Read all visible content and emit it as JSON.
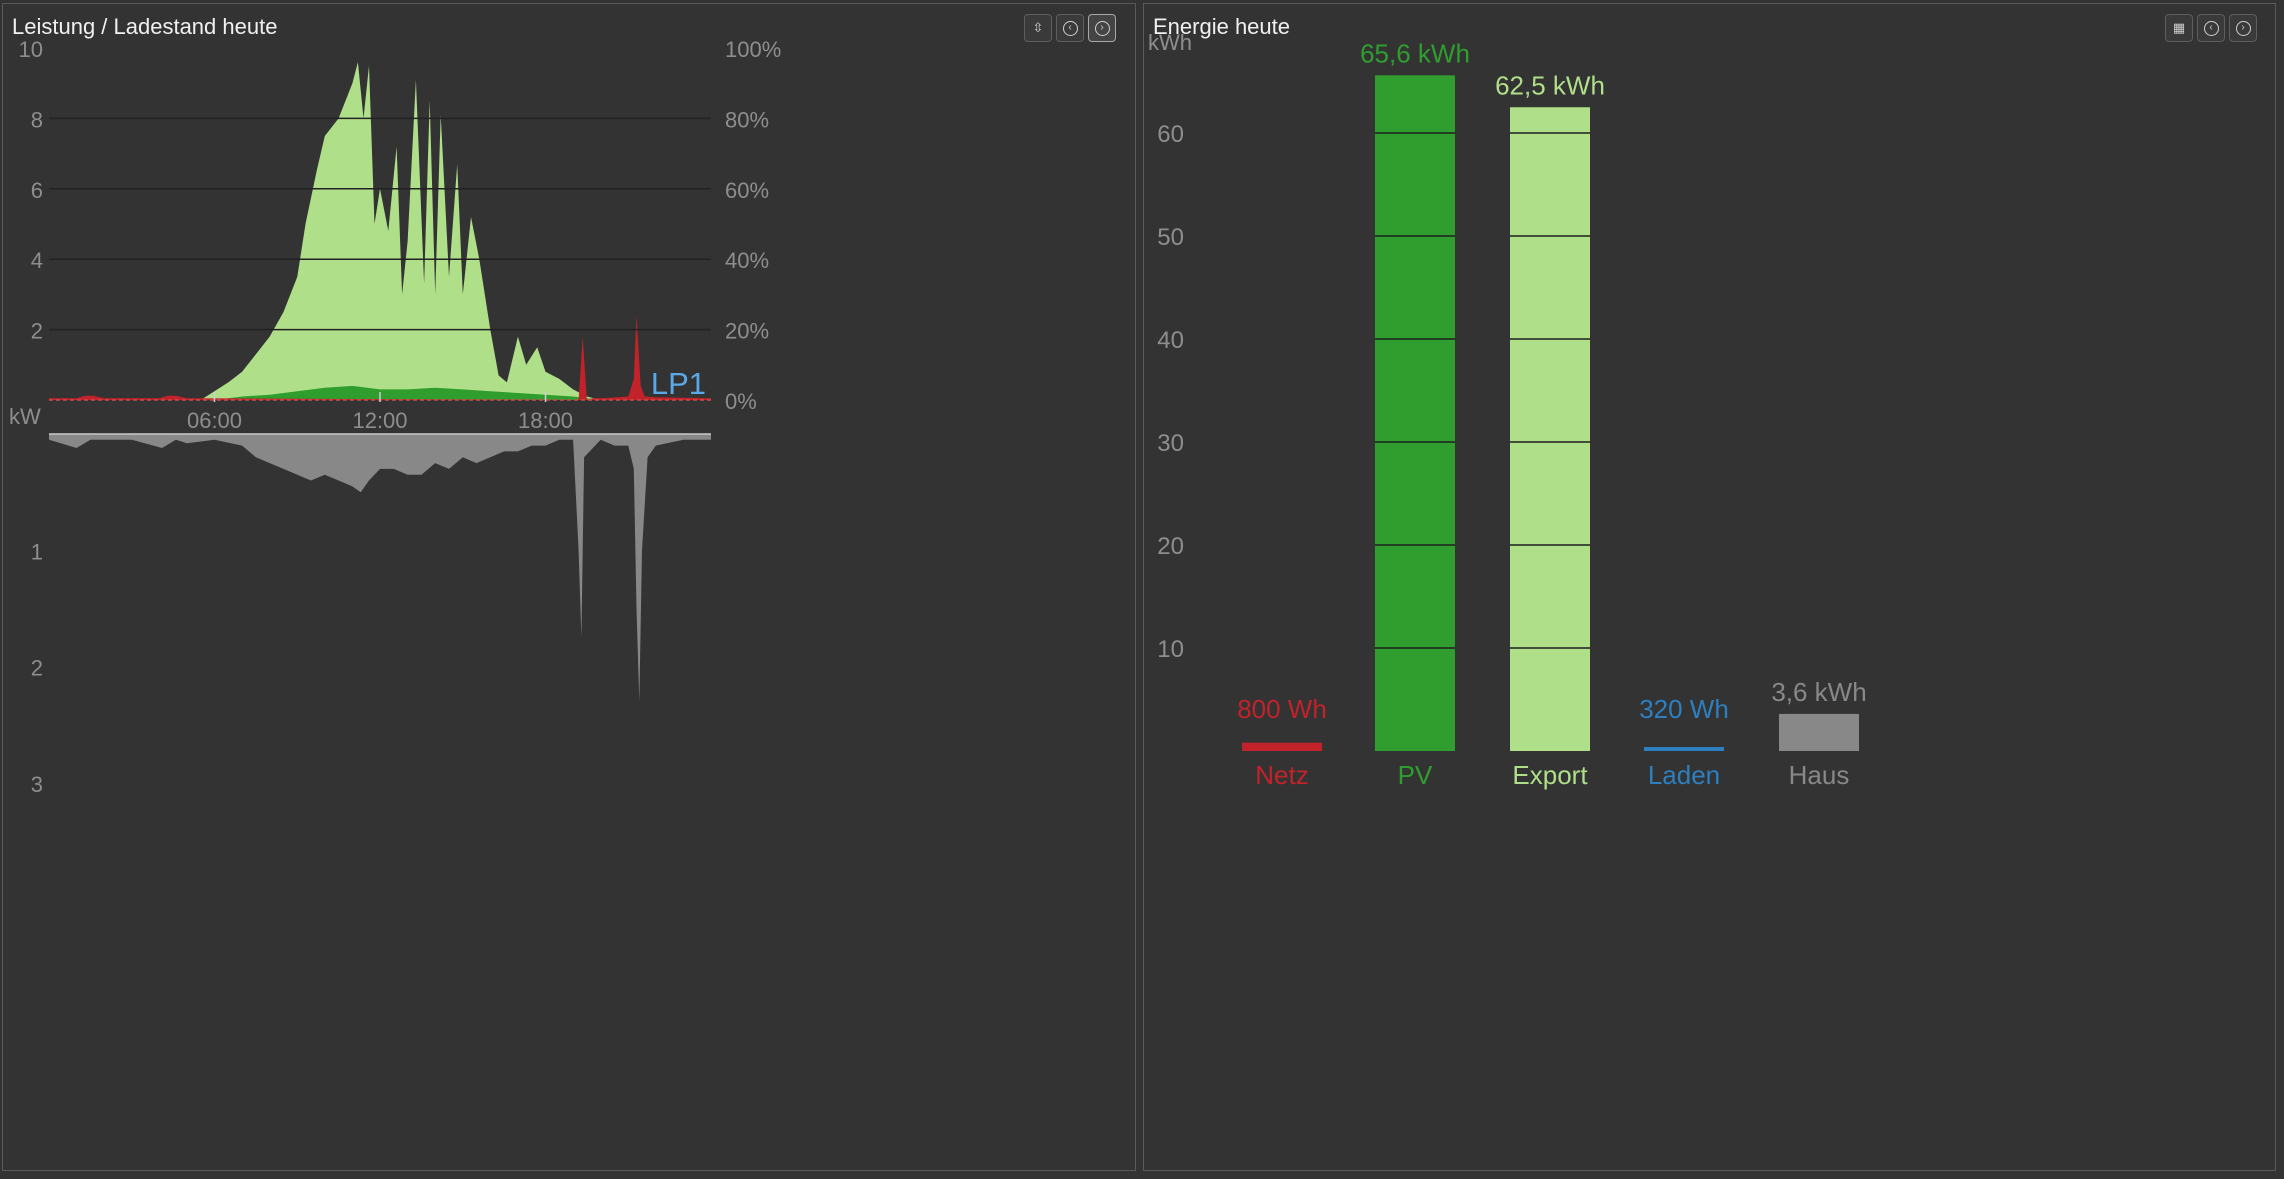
{
  "power_panel": {
    "title": "Leistung / Ladestand heute",
    "controls": [
      "sort-arrows-icon",
      "previous-icon",
      "next-icon"
    ]
  },
  "energy_panel": {
    "title": "Energie heute",
    "controls": [
      "calendar-icon",
      "previous-icon",
      "next-icon"
    ]
  },
  "colors": {
    "pv": "#2f9e2f",
    "export": "#b0df8a",
    "grid": "#c2222a",
    "charging": "#2d7fc0",
    "house": "#888888",
    "lp1_label": "#5aa9e6"
  },
  "chart_data": [
    {
      "type": "area",
      "upper": {
        "y_left_ticks": [
          "10",
          "8",
          "6",
          "4",
          "2"
        ],
        "y_left_unit": "kW",
        "y_left_range": [
          0,
          10
        ],
        "y_right_ticks": [
          "100%",
          "80%",
          "60%",
          "40%",
          "20%",
          "0%"
        ],
        "y_right_range": [
          0,
          100
        ],
        "x_ticks": [
          "06:00",
          "12:00",
          "18:00"
        ],
        "x_range_hours": [
          0,
          24
        ],
        "series_label": "LP1",
        "series": [
          {
            "color": "#b0df8a",
            "x": [
              0,
              5.5,
              6.5,
              7,
              7.5,
              8,
              8.5,
              9,
              9.3,
              9.7,
              10,
              10.5,
              11,
              11.2,
              11.4,
              11.6,
              11.8,
              12,
              12.3,
              12.6,
              12.8,
              13,
              13.3,
              13.6,
              13.8,
              14,
              14.2,
              14.5,
              14.8,
              15,
              15.3,
              15.6,
              15.8,
              16,
              16.3,
              16.6,
              17,
              17.3,
              17.7,
              18,
              18.5,
              19,
              19.5,
              20,
              24
            ],
            "values": [
              0,
              0,
              0.5,
              0.8,
              1.3,
              1.8,
              2.5,
              3.5,
              5.0,
              6.5,
              7.5,
              8.0,
              9.0,
              9.6,
              8.0,
              9.5,
              5.0,
              6.0,
              4.8,
              7.2,
              3.0,
              4.5,
              9.1,
              3.3,
              8.5,
              3.0,
              8.1,
              3.5,
              6.7,
              3.0,
              5.2,
              4.0,
              3.0,
              2.0,
              0.7,
              0.5,
              1.8,
              1.0,
              1.5,
              0.8,
              0.6,
              0.3,
              0.1,
              0,
              0
            ]
          },
          {
            "color": "#2f9e2f",
            "x": [
              0,
              6,
              7,
              8,
              9,
              10,
              11,
              12,
              13,
              14,
              15,
              16,
              17,
              18,
              19,
              20,
              24
            ],
            "values": [
              0,
              0,
              0.1,
              0.15,
              0.25,
              0.35,
              0.4,
              0.3,
              0.3,
              0.35,
              0.3,
              0.25,
              0.2,
              0.15,
              0.1,
              0,
              0
            ]
          },
          {
            "color": "#c2222a",
            "x": [
              0,
              1,
              1.3,
              1.6,
              2,
              4,
              4.3,
              4.6,
              5,
              19.2,
              19.35,
              19.5,
              19.7,
              20,
              21,
              21.2,
              21.3,
              21.45,
              21.6,
              22,
              24
            ],
            "values": [
              0.05,
              0.05,
              0.12,
              0.12,
              0.05,
              0.05,
              0.12,
              0.12,
              0.05,
              0,
              1.8,
              0,
              0.05,
              0.05,
              0.1,
              0.6,
              2.4,
              0.4,
              0.1,
              0.08,
              0.05
            ]
          }
        ]
      },
      "lower": {
        "y_ticks": [
          "1",
          "2",
          "3"
        ],
        "y_range": [
          0,
          3
        ],
        "series": [
          {
            "color": "#888888",
            "x": [
              0,
              1,
              1.5,
              3,
              4.1,
              4.6,
              5,
              6,
              7,
              7.5,
              8,
              8.5,
              9,
              9.5,
              10,
              10.5,
              11,
              11.3,
              11.6,
              12,
              12.5,
              13,
              13.5,
              14,
              14.5,
              15,
              15.5,
              16,
              16.5,
              17,
              17.5,
              18,
              18.5,
              19,
              19.2,
              19.3,
              19.4,
              20,
              20.5,
              21,
              21.2,
              21.3,
              21.4,
              21.5,
              21.7,
              22,
              23,
              24
            ],
            "values": [
              0.05,
              0.12,
              0.05,
              0.05,
              0.12,
              0.05,
              0.08,
              0.05,
              0.1,
              0.2,
              0.25,
              0.3,
              0.35,
              0.4,
              0.35,
              0.4,
              0.45,
              0.5,
              0.4,
              0.3,
              0.3,
              0.35,
              0.35,
              0.25,
              0.3,
              0.2,
              0.25,
              0.2,
              0.15,
              0.15,
              0.1,
              0.1,
              0.05,
              0.05,
              1.0,
              1.75,
              0.2,
              0.05,
              0.1,
              0.1,
              0.3,
              1.5,
              2.3,
              1.0,
              0.2,
              0.1,
              0.05,
              0.05
            ]
          }
        ]
      }
    },
    {
      "type": "bar",
      "ylabel": "kWh",
      "y_ticks": [
        "60",
        "50",
        "40",
        "30",
        "20",
        "10"
      ],
      "ylim": [
        0,
        70
      ],
      "categories": [
        "Netz",
        "PV",
        "Export",
        "Laden",
        "Haus"
      ],
      "values": [
        0.8,
        65.6,
        62.5,
        0.32,
        3.6
      ],
      "value_labels": [
        "800 Wh",
        "65,6 kWh",
        "62,5 kWh",
        "320 Wh",
        "3,6 kWh"
      ],
      "colors": [
        "#c2222a",
        "#2f9e2f",
        "#b0df8a",
        "#2d7fc0",
        "#888888"
      ]
    }
  ]
}
